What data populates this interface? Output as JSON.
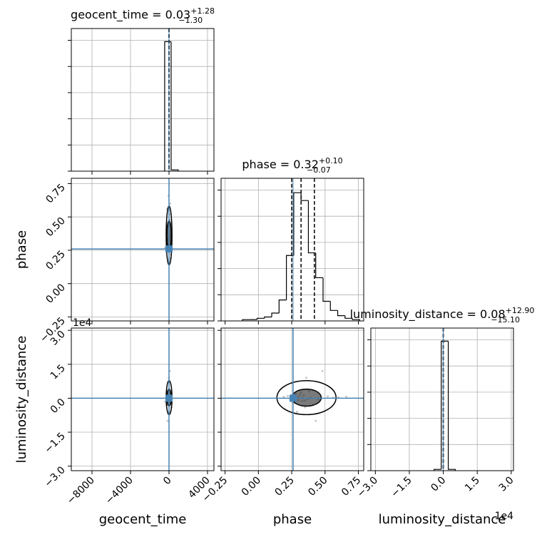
{
  "chart_data": {
    "type": "corner",
    "hist_ylim": [
      0,
      1.09
    ],
    "hist_yticks": [
      0,
      0.2,
      0.4,
      0.6,
      0.8,
      1.0
    ],
    "grid": true,
    "truth_color": "#4682b4",
    "point_color": "#b0b0b0",
    "line_color": "#000000",
    "parameters": [
      {
        "name": "geocent_time",
        "title": {
          "text": "geocent_time = 0.03",
          "sup": "+1.28",
          "sub": "−1.30"
        },
        "lim": [
          -10150,
          4670
        ],
        "ticks": [
          {
            "value": -8000,
            "label": "−8000"
          },
          {
            "value": -4000,
            "label": "−4000"
          },
          0,
          4000
        ],
        "quantiles": [
          -1.27,
          0.03,
          1.31
        ],
        "truth": 0,
        "bins": [
          -450,
          220,
          960
        ],
        "counts": [
          0.99,
          0.01
        ],
        "samples": [
          -120,
          80,
          30,
          -250,
          190,
          -60,
          140,
          -30,
          300,
          -180,
          50,
          10,
          -90,
          220,
          -10,
          110,
          -400,
          60,
          -140,
          170,
          20,
          -70,
          90,
          -20,
          250,
          -200,
          40,
          0,
          -50,
          130
        ]
      },
      {
        "name": "phase",
        "title": {
          "text": "phase = 0.32",
          "sup": "+0.10",
          "sub": "−0.07"
        },
        "lim": [
          -0.28,
          0.79
        ],
        "ticks": [
          {
            "value": -0.25,
            "label": "−0.25"
          },
          {
            "value": 0,
            "label": "0.00"
          },
          0.25,
          {
            "value": 0.5,
            "label": "0.50"
          },
          0.75
        ],
        "quantiles": [
          0.25,
          0.32,
          0.42
        ],
        "truth": 0.26,
        "bins": [
          -0.12,
          -0.065,
          -0.01,
          0.045,
          0.1,
          0.155,
          0.21,
          0.265,
          0.32,
          0.375,
          0.43,
          0.485,
          0.54,
          0.595,
          0.65,
          0.705,
          0.76
        ],
        "counts": [
          0.01,
          0.01,
          0.02,
          0.03,
          0.06,
          0.16,
          0.5,
          0.98,
          0.92,
          0.52,
          0.33,
          0.15,
          0.08,
          0.04,
          0.02,
          0.01
        ],
        "samples": [
          0.3,
          0.35,
          0.28,
          0.41,
          0.22,
          0.33,
          0.45,
          0.31,
          0.26,
          0.38,
          0.52,
          0.29,
          0.34,
          0.24,
          0.36,
          0.6,
          0.27,
          0.32,
          0.43,
          0.19,
          0.39,
          0.3,
          0.48,
          0.25,
          0.35,
          0.56,
          0.33,
          0.28,
          0.66,
          0.37
        ]
      },
      {
        "name": "luminosity_distance",
        "title": {
          "text": "luminosity_distance = 0.08",
          "sup": "+12.90",
          "sub": "−15.10"
        },
        "offset_text": "1e4",
        "lim": [
          -32000,
          31000
        ],
        "ticks": [
          {
            "value": -30000,
            "label": "−3.0"
          },
          {
            "value": -15000,
            "label": "−1.5"
          },
          {
            "value": 0,
            "label": "0.0"
          },
          {
            "value": 15000,
            "label": "1.5"
          },
          {
            "value": 30000,
            "label": "3.0"
          }
        ],
        "quantiles": [
          -15.02,
          0.08,
          12.98
        ],
        "truth": 0,
        "bins": [
          -4100,
          -900,
          2200,
          5300
        ],
        "counts": [
          0.01,
          0.99,
          0.01
        ],
        "samples": [
          500,
          -1000,
          2000,
          -3000,
          1000,
          0,
          -500,
          1500,
          -2000,
          3000,
          800,
          -6000,
          1200,
          -200,
          9000,
          400,
          -1500,
          2500,
          -10000,
          600,
          200,
          -800,
          12000,
          1000,
          -4000,
          300,
          -1200,
          1800,
          700,
          -300
        ]
      }
    ]
  }
}
